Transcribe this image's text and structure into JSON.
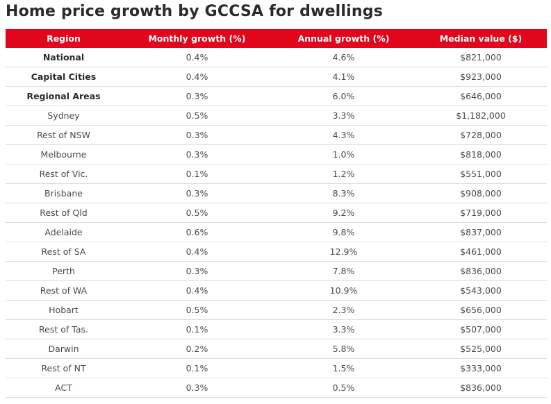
{
  "page": {
    "title": "Home price growth by GCCSA for dwellings"
  },
  "table": {
    "header_color": "#e2061d",
    "columns": [
      "Region",
      "Monthly growth (%)",
      "Annual growth (%)",
      "Median value ($)"
    ],
    "rows": [
      {
        "region": "National",
        "monthly": "0.4%",
        "annual": "4.6%",
        "median": "$821,000",
        "bold": true
      },
      {
        "region": "Capital Cities",
        "monthly": "0.4%",
        "annual": "4.1%",
        "median": "$923,000",
        "bold": true
      },
      {
        "region": "Regional Areas",
        "monthly": "0.3%",
        "annual": "6.0%",
        "median": "$646,000",
        "bold": true
      },
      {
        "region": "Sydney",
        "monthly": "0.5%",
        "annual": "3.3%",
        "median": "$1,182,000",
        "bold": false
      },
      {
        "region": "Rest of NSW",
        "monthly": "0.3%",
        "annual": "4.3%",
        "median": "$728,000",
        "bold": false
      },
      {
        "region": "Melbourne",
        "monthly": "0.3%",
        "annual": "1.0%",
        "median": "$818,000",
        "bold": false
      },
      {
        "region": "Rest of Vic.",
        "monthly": "0.1%",
        "annual": "1.2%",
        "median": "$551,000",
        "bold": false
      },
      {
        "region": "Brisbane",
        "monthly": "0.3%",
        "annual": "8.3%",
        "median": "$908,000",
        "bold": false
      },
      {
        "region": "Rest of Qld",
        "monthly": "0.5%",
        "annual": "9.2%",
        "median": "$719,000",
        "bold": false
      },
      {
        "region": "Adelaide",
        "monthly": "0.6%",
        "annual": "9.8%",
        "median": "$837,000",
        "bold": false
      },
      {
        "region": "Rest of SA",
        "monthly": "0.4%",
        "annual": "12.9%",
        "median": "$461,000",
        "bold": false
      },
      {
        "region": "Perth",
        "monthly": "0.3%",
        "annual": "7.8%",
        "median": "$836,000",
        "bold": false
      },
      {
        "region": "Rest of WA",
        "monthly": "0.4%",
        "annual": "10.9%",
        "median": "$543,000",
        "bold": false
      },
      {
        "region": "Hobart",
        "monthly": "0.5%",
        "annual": "2.3%",
        "median": "$656,000",
        "bold": false
      },
      {
        "region": "Rest of Tas.",
        "monthly": "0.1%",
        "annual": "3.3%",
        "median": "$507,000",
        "bold": false
      },
      {
        "region": "Darwin",
        "monthly": "0.2%",
        "annual": "5.8%",
        "median": "$525,000",
        "bold": false
      },
      {
        "region": "Rest of NT",
        "monthly": "0.1%",
        "annual": "1.5%",
        "median": "$333,000",
        "bold": false
      },
      {
        "region": "ACT",
        "monthly": "0.3%",
        "annual": "0.5%",
        "median": "$836,000",
        "bold": false
      }
    ]
  }
}
